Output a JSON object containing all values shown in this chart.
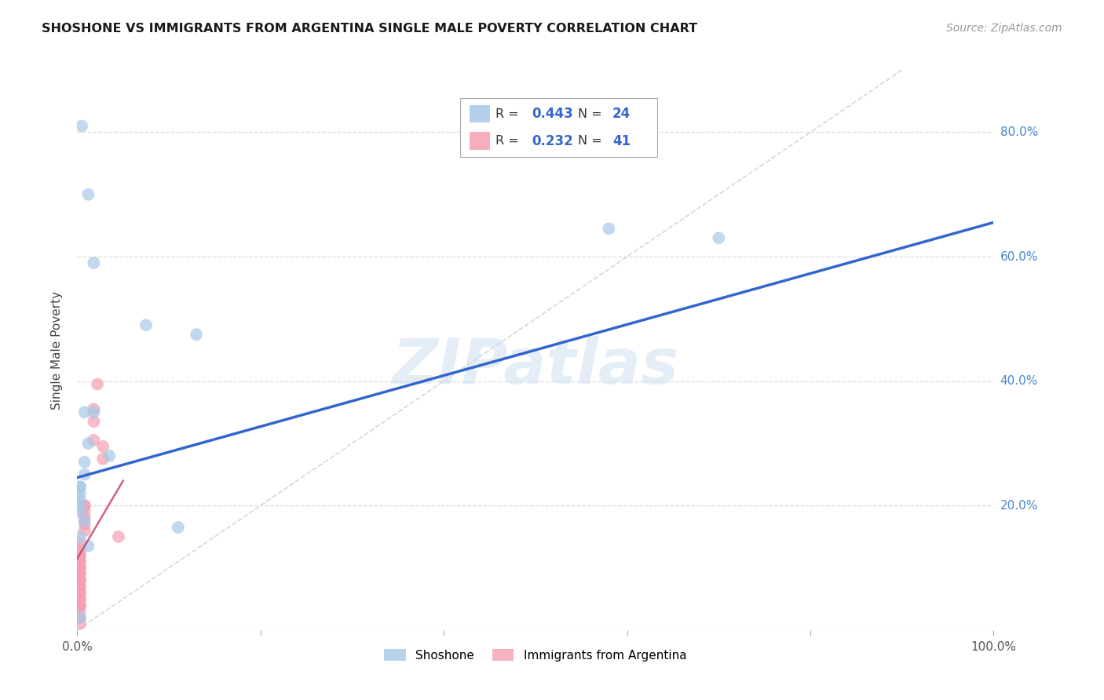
{
  "title": "SHOSHONE VS IMMIGRANTS FROM ARGENTINA SINGLE MALE POVERTY CORRELATION CHART",
  "source": "Source: ZipAtlas.com",
  "ylabel": "Single Male Poverty",
  "legend_blue_R": "0.443",
  "legend_blue_N": "24",
  "legend_pink_R": "0.232",
  "legend_pink_N": "41",
  "blue_color": "#a8c8e8",
  "pink_color": "#f4a0b0",
  "blue_line_color": "#3366cc",
  "pink_line_color": "#cc4466",
  "watermark": "ZIPatlas",
  "shoshone_x": [
    0.005,
    0.012,
    0.018,
    0.008,
    0.018,
    0.012,
    0.008,
    0.008,
    0.003,
    0.003,
    0.003,
    0.003,
    0.003,
    0.003,
    0.008,
    0.003,
    0.012,
    0.035,
    0.075,
    0.13,
    0.58,
    0.7,
    0.003,
    0.11
  ],
  "shoshone_y": [
    0.81,
    0.7,
    0.59,
    0.35,
    0.35,
    0.3,
    0.27,
    0.25,
    0.23,
    0.23,
    0.22,
    0.21,
    0.2,
    0.19,
    0.175,
    0.15,
    0.135,
    0.28,
    0.49,
    0.475,
    0.645,
    0.63,
    0.02,
    0.165
  ],
  "argentina_x": [
    0.003,
    0.003,
    0.003,
    0.003,
    0.003,
    0.003,
    0.003,
    0.003,
    0.003,
    0.003,
    0.003,
    0.003,
    0.003,
    0.003,
    0.003,
    0.003,
    0.003,
    0.003,
    0.003,
    0.003,
    0.003,
    0.003,
    0.003,
    0.003,
    0.003,
    0.003,
    0.003,
    0.003,
    0.008,
    0.008,
    0.008,
    0.008,
    0.008,
    0.008,
    0.018,
    0.018,
    0.018,
    0.022,
    0.028,
    0.028,
    0.045
  ],
  "argentina_y": [
    0.14,
    0.13,
    0.12,
    0.12,
    0.12,
    0.11,
    0.11,
    0.1,
    0.1,
    0.1,
    0.09,
    0.09,
    0.09,
    0.08,
    0.08,
    0.08,
    0.07,
    0.07,
    0.06,
    0.06,
    0.05,
    0.05,
    0.04,
    0.04,
    0.04,
    0.03,
    0.02,
    0.01,
    0.2,
    0.2,
    0.19,
    0.18,
    0.17,
    0.16,
    0.355,
    0.335,
    0.305,
    0.395,
    0.295,
    0.275,
    0.15
  ],
  "blue_trendline_x": [
    0.0,
    1.0
  ],
  "blue_trendline_y": [
    0.245,
    0.655
  ],
  "pink_trendline_x": [
    0.0,
    0.05
  ],
  "pink_trendline_y": [
    0.115,
    0.24
  ],
  "xlim": [
    0.0,
    1.0
  ],
  "ylim": [
    0.0,
    0.9
  ],
  "background_color": "#ffffff",
  "grid_color": "#dddddd",
  "right_axis_color": "#4488cc"
}
